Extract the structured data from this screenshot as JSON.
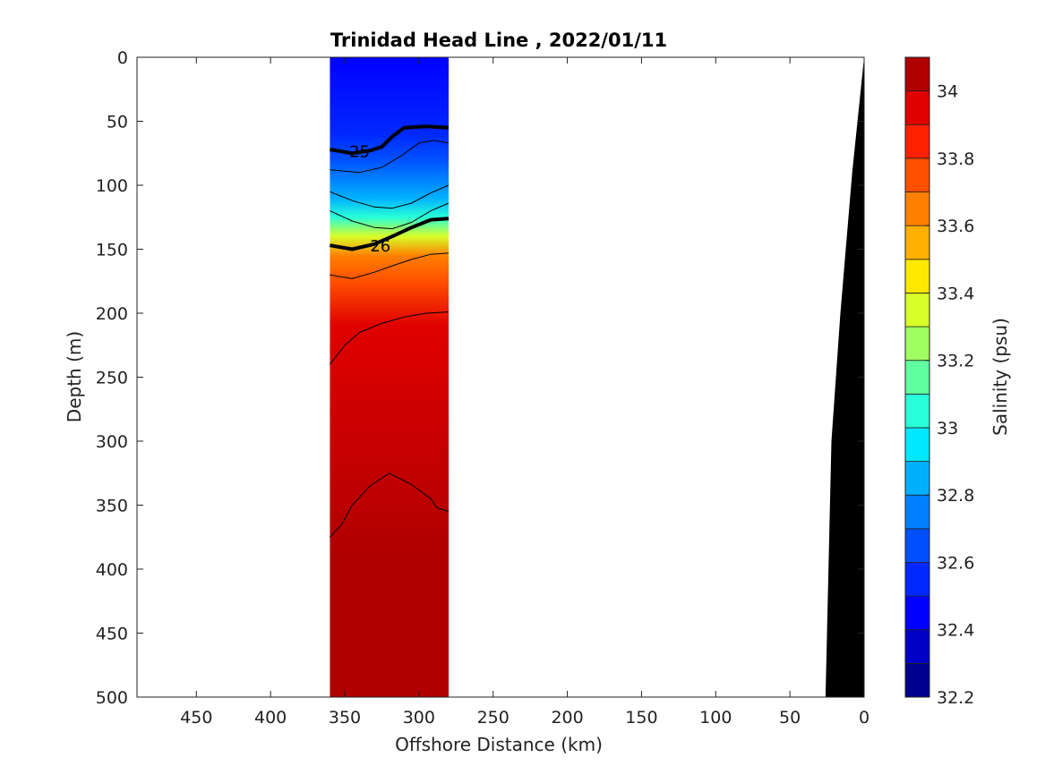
{
  "chart_data": {
    "type": "heatmap",
    "title": "Trinidad Head Line , 2022/01/11",
    "xlabel": "Offshore Distance (km)",
    "ylabel": "Depth (m)",
    "colorbar_label": "Salinity (psu)",
    "xlim": [
      490,
      0
    ],
    "ylim": [
      0,
      500
    ],
    "x_ticks": [
      "450",
      "400",
      "350",
      "300",
      "250",
      "200",
      "150",
      "100",
      "50",
      "0"
    ],
    "y_ticks": [
      "0",
      "50",
      "100",
      "150",
      "200",
      "250",
      "300",
      "350",
      "400",
      "450",
      "500"
    ],
    "colorbar_ticks": [
      "34",
      "33.8",
      "33.6",
      "33.4",
      "33.2",
      "33",
      "32.8",
      "32.6",
      "32.4",
      "32.2"
    ],
    "colorbar_range": [
      32.2,
      34.1
    ],
    "colorbar_levels": [
      "#00008f",
      "#0000c8",
      "#0000ff",
      "#0028ff",
      "#0050ff",
      "#0080ff",
      "#00b0ff",
      "#00e8ff",
      "#28ffd8",
      "#60ff9f",
      "#9fff60",
      "#d8ff28",
      "#ffe800",
      "#ffb000",
      "#ff8000",
      "#ff5000",
      "#ff2000",
      "#e00000",
      "#b00000"
    ],
    "section_x_range": [
      280,
      360
    ],
    "salinity_layers": [
      {
        "depth": 0,
        "salinity": 32.45
      },
      {
        "depth": 60,
        "salinity": 32.55
      },
      {
        "depth": 80,
        "salinity": 32.65
      },
      {
        "depth": 95,
        "salinity": 32.75
      },
      {
        "depth": 110,
        "salinity": 32.9
      },
      {
        "depth": 125,
        "salinity": 33.1
      },
      {
        "depth": 140,
        "salinity": 33.4
      },
      {
        "depth": 155,
        "salinity": 33.65
      },
      {
        "depth": 175,
        "salinity": 33.8
      },
      {
        "depth": 210,
        "salinity": 33.95
      },
      {
        "depth": 390,
        "salinity": 34.05
      },
      {
        "depth": 480,
        "salinity": 34.1
      }
    ],
    "density_contours": [
      {
        "label": "25",
        "emphasis": true,
        "label_at": [
          340,
          73
        ],
        "points": [
          [
            360,
            72
          ],
          [
            345,
            75
          ],
          [
            333,
            73
          ],
          [
            325,
            70
          ],
          [
            318,
            62
          ],
          [
            310,
            55
          ],
          [
            295,
            54
          ],
          [
            280,
            55
          ]
        ]
      },
      {
        "label": "",
        "emphasis": false,
        "points": [
          [
            360,
            88
          ],
          [
            340,
            90
          ],
          [
            325,
            86
          ],
          [
            312,
            77
          ],
          [
            300,
            67
          ],
          [
            290,
            65
          ],
          [
            280,
            67
          ]
        ]
      },
      {
        "label": "",
        "emphasis": false,
        "points": [
          [
            360,
            105
          ],
          [
            345,
            112
          ],
          [
            330,
            117
          ],
          [
            318,
            118
          ],
          [
            305,
            114
          ],
          [
            292,
            106
          ],
          [
            280,
            100
          ]
        ]
      },
      {
        "label": "",
        "emphasis": false,
        "points": [
          [
            360,
            120
          ],
          [
            345,
            128
          ],
          [
            330,
            133
          ],
          [
            318,
            134
          ],
          [
            305,
            129
          ],
          [
            292,
            120
          ],
          [
            280,
            114
          ]
        ]
      },
      {
        "label": "26",
        "emphasis": true,
        "label_at": [
          326,
          147
        ],
        "points": [
          [
            360,
            147
          ],
          [
            345,
            150
          ],
          [
            330,
            146
          ],
          [
            318,
            140
          ],
          [
            305,
            133
          ],
          [
            292,
            127
          ],
          [
            280,
            126
          ]
        ]
      },
      {
        "label": "",
        "emphasis": false,
        "points": [
          [
            360,
            170
          ],
          [
            345,
            173
          ],
          [
            330,
            168
          ],
          [
            318,
            163
          ],
          [
            305,
            158
          ],
          [
            292,
            154
          ],
          [
            280,
            153
          ]
        ]
      },
      {
        "label": "",
        "emphasis": false,
        "points": [
          [
            360,
            240
          ],
          [
            350,
            225
          ],
          [
            340,
            215
          ],
          [
            325,
            208
          ],
          [
            310,
            203
          ],
          [
            295,
            200
          ],
          [
            280,
            199
          ]
        ]
      },
      {
        "label": "",
        "emphasis": false,
        "points": [
          [
            360,
            375
          ],
          [
            352,
            365
          ],
          [
            345,
            350
          ],
          [
            333,
            335
          ],
          [
            320,
            325
          ],
          [
            305,
            334
          ],
          [
            292,
            345
          ],
          [
            288,
            352
          ],
          [
            280,
            355
          ]
        ]
      }
    ],
    "bathymetry_km_depth": [
      [
        0,
        0
      ],
      [
        8,
        90
      ],
      [
        16,
        200
      ],
      [
        22,
        300
      ],
      [
        26,
        500
      ]
    ]
  }
}
